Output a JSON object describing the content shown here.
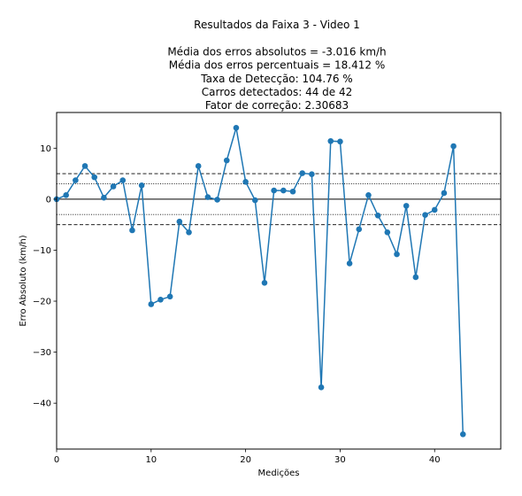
{
  "chart_data": {
    "type": "line",
    "title_lines": [
      "Resultados da Faixa 3 - Video 1",
      "",
      "Média dos erros absolutos =  -3.016 km/h",
      "Média dos erros percentuais = 18.412 %",
      "Taxa de Detecção: 104.76 %",
      "Carros detectados: 44 de 42",
      "Fator de correção: 2.30683"
    ],
    "xlabel": "Medições",
    "ylabel": "Erro Absoluto (km/h)",
    "xlim": [
      0,
      47
    ],
    "ylim": [
      -49,
      17
    ],
    "xticks": [
      0,
      10,
      20,
      30,
      40
    ],
    "yticks": [
      10,
      0,
      -10,
      -20,
      -30,
      -40
    ],
    "grid": false,
    "reference_lines": [
      {
        "y": 0,
        "style": "solid"
      },
      {
        "y": 5,
        "style": "dashed"
      },
      {
        "y": -5,
        "style": "dashed"
      },
      {
        "y": 3,
        "style": "dotted"
      },
      {
        "y": -3,
        "style": "dotted"
      }
    ],
    "series": [
      {
        "color": "#1f77b4",
        "marker": "circle",
        "x": [
          0,
          1,
          2,
          3,
          4,
          5,
          6,
          7,
          8,
          9,
          10,
          11,
          12,
          13,
          14,
          15,
          16,
          17,
          18,
          19,
          20,
          21,
          22,
          23,
          24,
          25,
          26,
          27,
          28,
          29,
          30,
          31,
          32,
          33,
          34,
          35,
          36,
          37,
          38,
          39,
          40,
          41,
          42,
          43
        ],
        "y": [
          0,
          0.8,
          3.7,
          6.5,
          4.3,
          0.3,
          2.5,
          3.7,
          -6.1,
          2.7,
          -20.6,
          -19.7,
          -19.1,
          -4.4,
          -6.5,
          6.5,
          0.4,
          -0.1,
          7.6,
          14.0,
          3.4,
          -0.2,
          -16.4,
          1.7,
          1.7,
          1.5,
          5.1,
          4.9,
          -36.9,
          11.4,
          11.3,
          -12.6,
          -5.9,
          0.8,
          -3.2,
          -6.5,
          -10.8,
          -1.3,
          -15.3,
          -3.1,
          -2.1,
          1.2,
          10.4,
          -46.1
        ]
      }
    ]
  }
}
